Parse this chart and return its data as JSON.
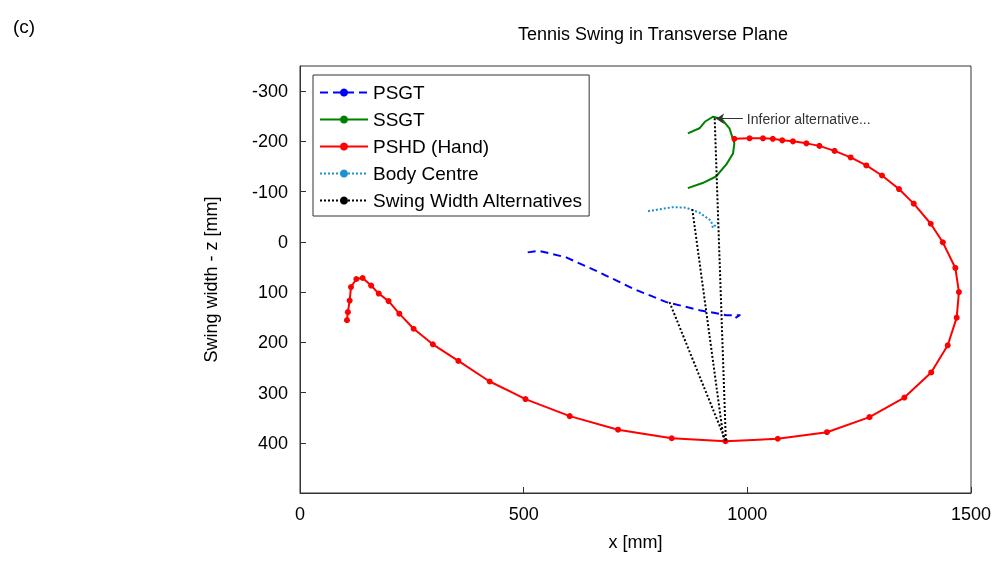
{
  "chart_data": {
    "type": "line",
    "title": "Tennis Swing in Transverse Plane",
    "xlabel": "x [mm]",
    "ylabel": "Swing width - z [mm]",
    "xlim": [
      0,
      1500
    ],
    "xticks": [
      0,
      500,
      1000,
      1500
    ],
    "ylim": [
      500,
      -350
    ],
    "yticks": [
      -300,
      -200,
      -100,
      0,
      100,
      200,
      300,
      400
    ],
    "grid": false,
    "legend": "top left",
    "annotations": [
      "(c)",
      {
        "text": "Inferior alternative...",
        "x": 930,
        "y": -245
      }
    ],
    "series": [
      {
        "name": "PSGT",
        "color": "#0000ff",
        "line_style": "dashed",
        "marker": "none",
        "x": [
          509,
          535,
          595,
          670,
          744,
          819,
          893,
          953,
          983,
          971
        ],
        "values": [
          21,
          18,
          31,
          61,
          93,
          120,
          136,
          146,
          146,
          153
        ]
      },
      {
        "name": "SSGT",
        "color": "#008000",
        "line_style": "solid",
        "marker": "none",
        "x": [
          867,
          893,
          905,
          923,
          942,
          960,
          971,
          968,
          953,
          930,
          900,
          867
        ],
        "values": [
          -216,
          -226,
          -239,
          -249,
          -245,
          -226,
          -196,
          -176,
          -154,
          -130,
          -117,
          -107
        ]
      },
      {
        "name": "PSHD (Hand)",
        "color": "#ff0000",
        "line_style": "solid",
        "marker": "circle",
        "x": [
          105,
          107,
          111,
          114,
          126,
          140,
          159,
          176,
          198,
          222,
          254,
          297,
          354,
          424,
          504,
          603,
          711,
          831,
          951,
          1068,
          1178,
          1273,
          1351,
          1411,
          1448,
          1468,
          1473,
          1465,
          1437,
          1410,
          1372,
          1339,
          1301,
          1266,
          1231,
          1195,
          1161,
          1132,
          1102,
          1078,
          1057,
          1035,
          1005,
          971
        ],
        "values": [
          156,
          140,
          117,
          90,
          74,
          72,
          87,
          103,
          118,
          143,
          173,
          204,
          237,
          278,
          313,
          347,
          374,
          391,
          397,
          392,
          379,
          349,
          310,
          260,
          206,
          151,
          100,
          52,
          1,
          -36,
          -76,
          -105,
          -132,
          -152,
          -168,
          -181,
          -191,
          -196,
          -200,
          -202,
          -205,
          -206,
          -206,
          -205
        ]
      },
      {
        "name": "Body Centre",
        "color": "#1e90d0",
        "line_style": "dotted",
        "marker": "none",
        "x": [
          778,
          833,
          863,
          893,
          919,
          923,
          934
        ],
        "values": [
          -61,
          -69,
          -68,
          -58,
          -42,
          -28,
          -38
        ]
      },
      {
        "name": "Swing Width Alternatives",
        "color": "#000000",
        "line_style": "dotted",
        "marker": "none",
        "x": [
          826,
          952,
          null,
          877,
          947,
          null,
          927,
          952
        ],
        "values": [
          120,
          397,
          null,
          -65,
          393,
          null,
          -246,
          397
        ]
      }
    ]
  }
}
